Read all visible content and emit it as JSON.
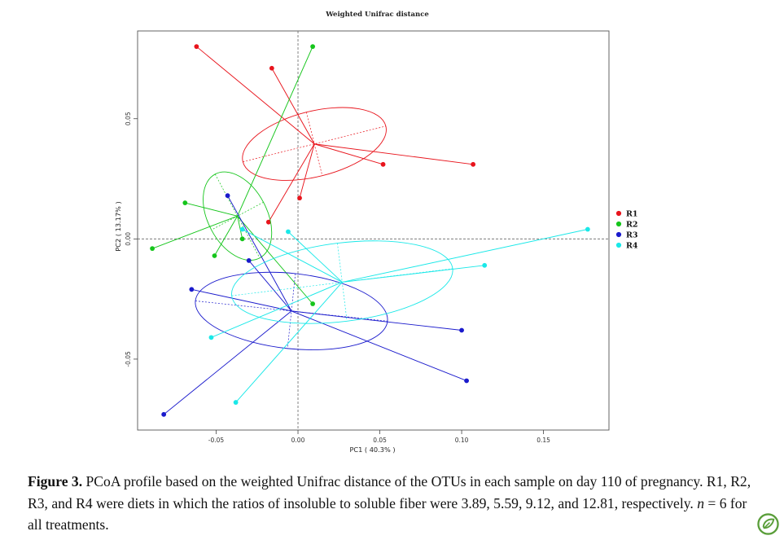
{
  "chart_data": {
    "type": "scatter",
    "title": "Weighted Unifrac distance",
    "xlabel": "PC1 ( 40.3% )",
    "ylabel": "PC2 ( 13.17% )",
    "xlim": [
      -0.098,
      0.19
    ],
    "ylim": [
      -0.0795,
      0.0865
    ],
    "x_ticks": [
      -0.05,
      0.0,
      0.05,
      0.1,
      0.15
    ],
    "x_tick_labels": [
      "-0.05",
      "0.00",
      "0.05",
      "0.10",
      "0.15"
    ],
    "y_ticks": [
      -0.05,
      0.0,
      0.05
    ],
    "y_tick_labels": [
      "-0.05",
      "0.00",
      "0.05"
    ],
    "grid": false,
    "reference_lines": {
      "x": 0.0,
      "y": 0.0
    },
    "legend_position": "right",
    "series": [
      {
        "name": "R1",
        "color": "#e8141c",
        "points": [
          [
            -0.062,
            0.08
          ],
          [
            -0.016,
            0.071
          ],
          [
            -0.018,
            0.007
          ],
          [
            0.001,
            0.017
          ],
          [
            0.052,
            0.031
          ],
          [
            0.107,
            0.031
          ]
        ],
        "centroid": [
          0.01,
          0.0395
        ],
        "ellipse": {
          "rx": 0.045,
          "ry": 0.02,
          "angle_deg": -14
        }
      },
      {
        "name": "R2",
        "color": "#15c51b",
        "points": [
          [
            -0.089,
            -0.004
          ],
          [
            -0.069,
            0.015
          ],
          [
            -0.051,
            -0.007
          ],
          [
            -0.034,
            0.0
          ],
          [
            0.009,
            -0.027
          ],
          [
            0.009,
            0.08
          ]
        ],
        "centroid": [
          -0.037,
          0.0095
        ],
        "ellipse": {
          "rx": 0.029,
          "ry": 0.018,
          "angle_deg": 62
        }
      },
      {
        "name": "R3",
        "color": "#1a1acc",
        "points": [
          [
            -0.082,
            -0.073
          ],
          [
            -0.065,
            -0.021
          ],
          [
            -0.043,
            0.018
          ],
          [
            -0.03,
            -0.009
          ],
          [
            0.1,
            -0.038
          ],
          [
            0.103,
            -0.059
          ]
        ],
        "centroid": [
          -0.004,
          -0.03
        ],
        "ellipse": {
          "rx": 0.059,
          "ry": 0.023,
          "angle_deg": 6
        }
      },
      {
        "name": "R4",
        "color": "#1ae8e8",
        "points": [
          [
            -0.053,
            -0.041
          ],
          [
            -0.038,
            -0.068
          ],
          [
            -0.034,
            0.004
          ],
          [
            -0.006,
            0.003
          ],
          [
            0.114,
            -0.011
          ],
          [
            0.177,
            0.004
          ]
        ],
        "centroid": [
          0.027,
          -0.018
        ],
        "ellipse": {
          "rx": 0.068,
          "ry": 0.024,
          "angle_deg": -7
        }
      }
    ]
  },
  "caption": {
    "figure_label": "Figure 3.",
    "text_part1": " PCoA profile based on the weighted Unifrac distance of the OTUs in each sample on day 110 of pregnancy. R1, R2, R3, and R4 were diets in which the ratios of insoluble to soluble fiber were 3.89, 5.59, 9.12, and 12.81, respectively. ",
    "n_symbol": "n",
    "text_part2": " = 6 for all treatments."
  },
  "logo": {
    "icon": "journal-leaf-logo",
    "color": "#5a9e3a"
  }
}
